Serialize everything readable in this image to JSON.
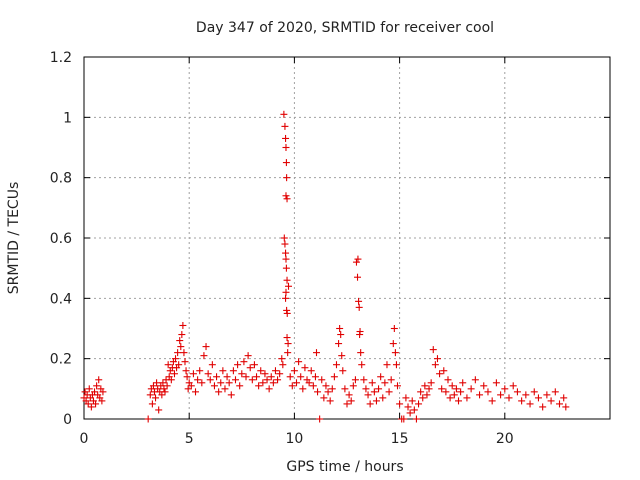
{
  "chart_data": {
    "type": "scatter",
    "title": "Day 347 of 2020, SRMTID for receiver cool",
    "xlabel": "GPS time / hours",
    "ylabel": "SRMTID / TECUs",
    "xlim": [
      0,
      25
    ],
    "ylim": [
      0,
      1.2
    ],
    "xticks": [
      0,
      5,
      10,
      15,
      20
    ],
    "xtick_labels": [
      "0",
      "5",
      "10",
      "15",
      "20"
    ],
    "yticks": [
      0,
      0.2,
      0.4,
      0.6,
      0.8,
      1.0,
      1.2
    ],
    "ytick_labels": [
      "0",
      "0.2",
      "0.4",
      "0.6",
      "0.8",
      "1",
      "1.2"
    ],
    "grid": true,
    "marker": "+",
    "color": "#e00000",
    "series": [
      {
        "name": "SRMTID",
        "points": [
          [
            0.0,
            0.07
          ],
          [
            0.05,
            0.09
          ],
          [
            0.1,
            0.06
          ],
          [
            0.15,
            0.08
          ],
          [
            0.2,
            0.05
          ],
          [
            0.25,
            0.1
          ],
          [
            0.3,
            0.07
          ],
          [
            0.35,
            0.04
          ],
          [
            0.4,
            0.08
          ],
          [
            0.45,
            0.06
          ],
          [
            0.5,
            0.09
          ],
          [
            0.55,
            0.05
          ],
          [
            0.6,
            0.11
          ],
          [
            0.65,
            0.08
          ],
          [
            0.7,
            0.13
          ],
          [
            0.75,
            0.07
          ],
          [
            0.8,
            0.1
          ],
          [
            0.85,
            0.06
          ],
          [
            0.9,
            0.09
          ],
          [
            3.05,
            0.0
          ],
          [
            3.15,
            0.08
          ],
          [
            3.2,
            0.1
          ],
          [
            3.25,
            0.05
          ],
          [
            3.3,
            0.11
          ],
          [
            3.35,
            0.09
          ],
          [
            3.4,
            0.07
          ],
          [
            3.45,
            0.12
          ],
          [
            3.5,
            0.1
          ],
          [
            3.55,
            0.03
          ],
          [
            3.6,
            0.09
          ],
          [
            3.65,
            0.11
          ],
          [
            3.7,
            0.08
          ],
          [
            3.75,
            0.12
          ],
          [
            3.8,
            0.1
          ],
          [
            3.85,
            0.09
          ],
          [
            3.9,
            0.13
          ],
          [
            3.95,
            0.11
          ],
          [
            4.0,
            0.18
          ],
          [
            4.05,
            0.14
          ],
          [
            4.1,
            0.16
          ],
          [
            4.15,
            0.13
          ],
          [
            4.2,
            0.17
          ],
          [
            4.25,
            0.19
          ],
          [
            4.3,
            0.15
          ],
          [
            4.35,
            0.2
          ],
          [
            4.4,
            0.17
          ],
          [
            4.45,
            0.22
          ],
          [
            4.5,
            0.18
          ],
          [
            4.55,
            0.26
          ],
          [
            4.6,
            0.24
          ],
          [
            4.65,
            0.28
          ],
          [
            4.7,
            0.31
          ],
          [
            4.75,
            0.22
          ],
          [
            4.8,
            0.19
          ],
          [
            4.85,
            0.16
          ],
          [
            4.9,
            0.14
          ],
          [
            4.95,
            0.1
          ],
          [
            5.0,
            0.12
          ],
          [
            5.1,
            0.11
          ],
          [
            5.2,
            0.15
          ],
          [
            5.3,
            0.09
          ],
          [
            5.4,
            0.13
          ],
          [
            5.5,
            0.16
          ],
          [
            5.6,
            0.12
          ],
          [
            5.7,
            0.21
          ],
          [
            5.8,
            0.24
          ],
          [
            5.9,
            0.15
          ],
          [
            6.0,
            0.13
          ],
          [
            6.1,
            0.18
          ],
          [
            6.2,
            0.11
          ],
          [
            6.3,
            0.14
          ],
          [
            6.4,
            0.09
          ],
          [
            6.5,
            0.12
          ],
          [
            6.6,
            0.16
          ],
          [
            6.7,
            0.1
          ],
          [
            6.8,
            0.14
          ],
          [
            6.9,
            0.12
          ],
          [
            7.0,
            0.08
          ],
          [
            7.1,
            0.16
          ],
          [
            7.2,
            0.13
          ],
          [
            7.3,
            0.18
          ],
          [
            7.4,
            0.11
          ],
          [
            7.5,
            0.15
          ],
          [
            7.6,
            0.19
          ],
          [
            7.7,
            0.14
          ],
          [
            7.8,
            0.21
          ],
          [
            7.9,
            0.17
          ],
          [
            8.0,
            0.13
          ],
          [
            8.1,
            0.18
          ],
          [
            8.2,
            0.14
          ],
          [
            8.3,
            0.11
          ],
          [
            8.4,
            0.16
          ],
          [
            8.5,
            0.12
          ],
          [
            8.6,
            0.15
          ],
          [
            8.7,
            0.13
          ],
          [
            8.8,
            0.1
          ],
          [
            8.9,
            0.14
          ],
          [
            9.0,
            0.12
          ],
          [
            9.1,
            0.16
          ],
          [
            9.2,
            0.13
          ],
          [
            9.3,
            0.15
          ],
          [
            9.4,
            0.2
          ],
          [
            9.45,
            0.18
          ],
          [
            9.5,
            1.01
          ],
          [
            9.52,
            0.6
          ],
          [
            9.55,
            0.97
          ],
          [
            9.58,
            0.93
          ],
          [
            9.6,
            0.9
          ],
          [
            9.62,
            0.85
          ],
          [
            9.63,
            0.8
          ],
          [
            9.6,
            0.74
          ],
          [
            9.65,
            0.73
          ],
          [
            9.55,
            0.58
          ],
          [
            9.58,
            0.55
          ],
          [
            9.6,
            0.53
          ],
          [
            9.62,
            0.5
          ],
          [
            9.65,
            0.46
          ],
          [
            9.6,
            0.42
          ],
          [
            9.58,
            0.4
          ],
          [
            9.63,
            0.36
          ],
          [
            9.66,
            0.35
          ],
          [
            9.65,
            0.27
          ],
          [
            9.7,
            0.25
          ],
          [
            9.68,
            0.22
          ],
          [
            9.72,
            0.44
          ],
          [
            9.8,
            0.14
          ],
          [
            9.9,
            0.11
          ],
          [
            10.0,
            0.16
          ],
          [
            10.1,
            0.12
          ],
          [
            10.2,
            0.19
          ],
          [
            10.3,
            0.14
          ],
          [
            10.4,
            0.1
          ],
          [
            10.5,
            0.17
          ],
          [
            10.6,
            0.13
          ],
          [
            10.7,
            0.12
          ],
          [
            10.8,
            0.16
          ],
          [
            10.9,
            0.11
          ],
          [
            11.0,
            0.14
          ],
          [
            11.05,
            0.22
          ],
          [
            11.1,
            0.09
          ],
          [
            11.2,
            0.0
          ],
          [
            11.3,
            0.13
          ],
          [
            11.4,
            0.07
          ],
          [
            11.5,
            0.11
          ],
          [
            11.6,
            0.09
          ],
          [
            11.7,
            0.06
          ],
          [
            11.8,
            0.1
          ],
          [
            11.9,
            0.14
          ],
          [
            12.0,
            0.18
          ],
          [
            12.1,
            0.25
          ],
          [
            12.15,
            0.3
          ],
          [
            12.2,
            0.28
          ],
          [
            12.25,
            0.21
          ],
          [
            12.3,
            0.16
          ],
          [
            12.4,
            0.1
          ],
          [
            12.5,
            0.05
          ],
          [
            12.6,
            0.08
          ],
          [
            12.7,
            0.06
          ],
          [
            12.8,
            0.11
          ],
          [
            12.9,
            0.13
          ],
          [
            12.95,
            0.52
          ],
          [
            13.0,
            0.47
          ],
          [
            13.02,
            0.53
          ],
          [
            13.05,
            0.39
          ],
          [
            13.08,
            0.37
          ],
          [
            13.1,
            0.28
          ],
          [
            13.12,
            0.29
          ],
          [
            13.15,
            0.22
          ],
          [
            13.2,
            0.18
          ],
          [
            13.3,
            0.13
          ],
          [
            13.4,
            0.1
          ],
          [
            13.5,
            0.08
          ],
          [
            13.6,
            0.05
          ],
          [
            13.7,
            0.12
          ],
          [
            13.8,
            0.09
          ],
          [
            13.9,
            0.06
          ],
          [
            14.0,
            0.1
          ],
          [
            14.1,
            0.14
          ],
          [
            14.2,
            0.07
          ],
          [
            14.3,
            0.12
          ],
          [
            14.4,
            0.18
          ],
          [
            14.5,
            0.09
          ],
          [
            14.6,
            0.13
          ],
          [
            14.7,
            0.25
          ],
          [
            14.75,
            0.3
          ],
          [
            14.8,
            0.22
          ],
          [
            14.85,
            0.18
          ],
          [
            14.9,
            0.11
          ],
          [
            15.0,
            0.05
          ],
          [
            15.1,
            0.0
          ],
          [
            15.2,
            0.0
          ],
          [
            15.3,
            0.07
          ],
          [
            15.4,
            0.04
          ],
          [
            15.5,
            0.02
          ],
          [
            15.6,
            0.06
          ],
          [
            15.7,
            0.03
          ],
          [
            15.8,
            0.0
          ],
          [
            15.9,
            0.05
          ],
          [
            16.0,
            0.09
          ],
          [
            16.1,
            0.07
          ],
          [
            16.2,
            0.11
          ],
          [
            16.3,
            0.08
          ],
          [
            16.4,
            0.1
          ],
          [
            16.5,
            0.12
          ],
          [
            16.6,
            0.23
          ],
          [
            16.7,
            0.18
          ],
          [
            16.8,
            0.2
          ],
          [
            16.9,
            0.15
          ],
          [
            17.0,
            0.1
          ],
          [
            17.1,
            0.16
          ],
          [
            17.2,
            0.09
          ],
          [
            17.3,
            0.13
          ],
          [
            17.4,
            0.07
          ],
          [
            17.5,
            0.11
          ],
          [
            17.6,
            0.08
          ],
          [
            17.7,
            0.1
          ],
          [
            17.8,
            0.06
          ],
          [
            17.9,
            0.09
          ],
          [
            18.0,
            0.12
          ],
          [
            18.2,
            0.07
          ],
          [
            18.4,
            0.1
          ],
          [
            18.6,
            0.13
          ],
          [
            18.8,
            0.08
          ],
          [
            19.0,
            0.11
          ],
          [
            19.2,
            0.09
          ],
          [
            19.4,
            0.06
          ],
          [
            19.6,
            0.12
          ],
          [
            19.8,
            0.08
          ],
          [
            20.0,
            0.1
          ],
          [
            20.2,
            0.07
          ],
          [
            20.4,
            0.11
          ],
          [
            20.6,
            0.09
          ],
          [
            20.8,
            0.06
          ],
          [
            21.0,
            0.08
          ],
          [
            21.2,
            0.05
          ],
          [
            21.4,
            0.09
          ],
          [
            21.6,
            0.07
          ],
          [
            21.8,
            0.04
          ],
          [
            22.0,
            0.08
          ],
          [
            22.2,
            0.06
          ],
          [
            22.4,
            0.09
          ],
          [
            22.6,
            0.05
          ],
          [
            22.8,
            0.07
          ],
          [
            22.9,
            0.04
          ]
        ]
      }
    ]
  }
}
